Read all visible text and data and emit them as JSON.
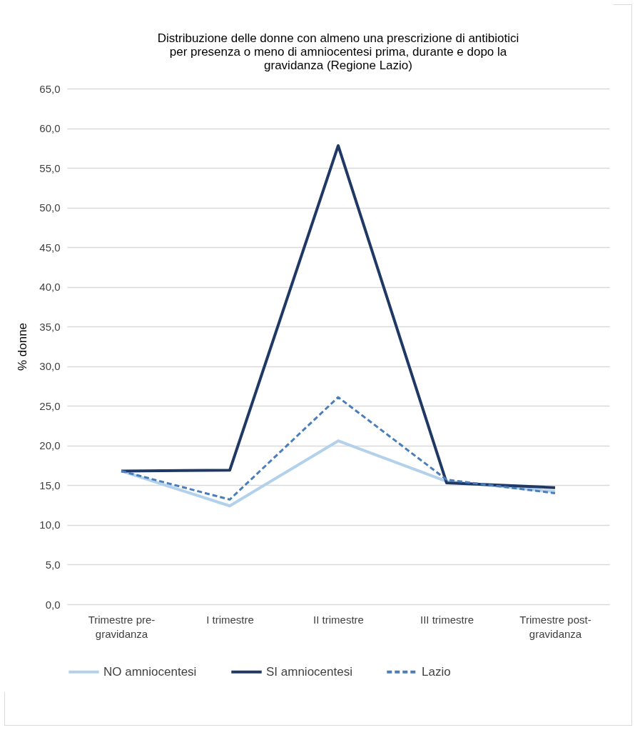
{
  "chart_data": {
    "type": "line",
    "title": "Distribuzione delle donne con almeno una prescrizione di antibiotici per presenza o meno di amniocentesi prima, durante e dopo la gravidanza (Regione Lazio)",
    "ylabel": "% donne",
    "categories": [
      "Trimestre pre-gravidanza",
      "I trimestre",
      "II trimestre",
      "III trimestre",
      "Trimestre post-gravidanza"
    ],
    "series": [
      {
        "name": "NO amniocentesi",
        "color": "#b4d1ec",
        "line_style": "solid",
        "values": [
          16.8,
          12.4,
          20.6,
          15.5,
          14.2
        ]
      },
      {
        "name": "SI amniocentesi",
        "color": "#1f3864",
        "line_style": "solid",
        "values": [
          16.8,
          16.9,
          57.8,
          15.3,
          14.7
        ]
      },
      {
        "name": "Lazio",
        "color": "#4a7ebb",
        "line_style": "dashed",
        "values": [
          16.8,
          13.2,
          26.1,
          15.7,
          14.0
        ]
      }
    ],
    "ylim": [
      0,
      65
    ],
    "yticks": [
      {
        "value": 0,
        "label": "0,0"
      },
      {
        "value": 5,
        "label": "5,0"
      },
      {
        "value": 10,
        "label": "10,0"
      },
      {
        "value": 15,
        "label": "15,0"
      },
      {
        "value": 20,
        "label": "20,0"
      },
      {
        "value": 25,
        "label": "25,0"
      },
      {
        "value": 30,
        "label": "30,0"
      },
      {
        "value": 35,
        "label": "35,0"
      },
      {
        "value": 40,
        "label": "40,0"
      },
      {
        "value": 45,
        "label": "45,0"
      },
      {
        "value": 50,
        "label": "50,0"
      },
      {
        "value": 55,
        "label": "55,0"
      },
      {
        "value": 60,
        "label": "60,0"
      },
      {
        "value": 65,
        "label": "65,0"
      }
    ],
    "grid": "y",
    "legend": "bottom",
    "marker": "none"
  }
}
